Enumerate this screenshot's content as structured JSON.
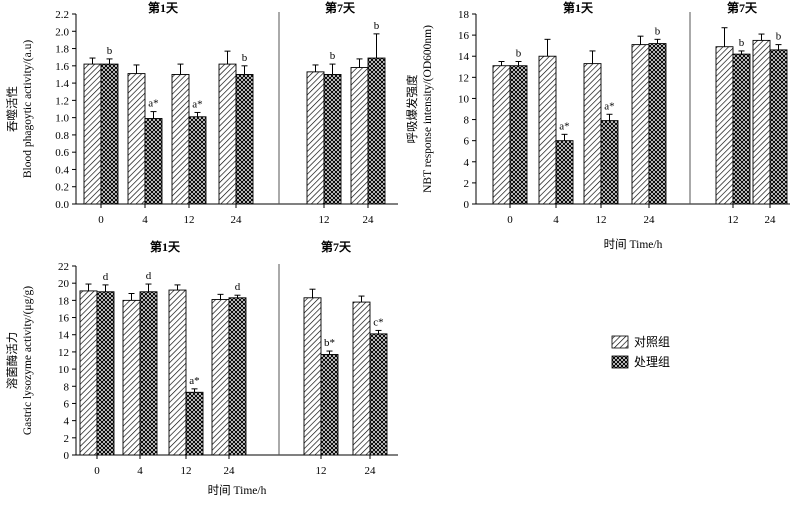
{
  "legend": {
    "control": "对照组",
    "treated": "处理组"
  },
  "chart_data": [
    {
      "type": "bar",
      "ylabel_cn": "吞噬活性",
      "ylabel_en": "Blood phagoytic activity/(a.u)",
      "xlabel": "",
      "ylim": [
        0,
        2.2
      ],
      "ytick_step": 0.2,
      "ytick_decimals": 1,
      "groups": [
        {
          "day_label": "第1天",
          "categories": [
            "0",
            "4",
            "12",
            "24"
          ],
          "series": [
            {
              "name": "对照组",
              "values": [
                1.62,
                1.51,
                1.5,
                1.62
              ],
              "errors": [
                0.07,
                0.1,
                0.12,
                0.15
              ]
            },
            {
              "name": "处理组",
              "values": [
                1.62,
                0.99,
                1.01,
                1.5
              ],
              "errors": [
                0.06,
                0.08,
                0.05,
                0.1
              ]
            }
          ],
          "annotations": [
            {
              "category": "0",
              "series": 1,
              "text": "b"
            },
            {
              "category": "4",
              "series": 1,
              "text": "a*"
            },
            {
              "category": "12",
              "series": 1,
              "text": "a*"
            },
            {
              "category": "24",
              "series": 1,
              "text": "b"
            }
          ]
        },
        {
          "day_label": "第7天",
          "categories": [
            "12",
            "24"
          ],
          "series": [
            {
              "name": "对照组",
              "values": [
                1.53,
                1.58
              ],
              "errors": [
                0.08,
                0.1
              ]
            },
            {
              "name": "处理组",
              "values": [
                1.5,
                1.69
              ],
              "errors": [
                0.12,
                0.28
              ]
            }
          ],
          "annotations": [
            {
              "category": "12",
              "series": 1,
              "text": "b"
            },
            {
              "category": "24",
              "series": 1,
              "text": "b"
            }
          ]
        }
      ]
    },
    {
      "type": "bar",
      "ylabel_cn": "呼吸爆发强度",
      "ylabel_en": "NBT response intensity/(OD600nm)",
      "xlabel": "时间 Time/h",
      "ylim": [
        0,
        18
      ],
      "ytick_step": 2,
      "ytick_decimals": 0,
      "groups": [
        {
          "day_label": "第1天",
          "categories": [
            "0",
            "4",
            "12",
            "24"
          ],
          "series": [
            {
              "name": "对照组",
              "values": [
                13.1,
                14.0,
                13.3,
                15.1
              ],
              "errors": [
                0.4,
                1.6,
                1.2,
                0.8
              ]
            },
            {
              "name": "处理组",
              "values": [
                13.1,
                6.0,
                7.9,
                15.2
              ],
              "errors": [
                0.4,
                0.6,
                0.6,
                0.4
              ]
            }
          ],
          "annotations": [
            {
              "category": "0",
              "series": 1,
              "text": "b"
            },
            {
              "category": "4",
              "series": 1,
              "text": "a*"
            },
            {
              "category": "12",
              "series": 1,
              "text": "a*"
            },
            {
              "category": "24",
              "series": 1,
              "text": "b"
            }
          ]
        },
        {
          "day_label": "第7天",
          "categories": [
            "12",
            "24"
          ],
          "series": [
            {
              "name": "对照组",
              "values": [
                14.9,
                15.5
              ],
              "errors": [
                1.8,
                0.6
              ]
            },
            {
              "name": "处理组",
              "values": [
                14.2,
                14.6
              ],
              "errors": [
                0.3,
                0.5
              ]
            }
          ],
          "annotations": [
            {
              "category": "12",
              "series": 1,
              "text": "b"
            },
            {
              "category": "24",
              "series": 1,
              "text": "b"
            }
          ]
        }
      ]
    },
    {
      "type": "bar",
      "ylabel_cn": "溶菌酶活力",
      "ylabel_en": "Gastric lysozyme activity/(μg/g)",
      "xlabel": "时间 Time/h",
      "ylim": [
        0,
        22
      ],
      "ytick_step": 2,
      "ytick_decimals": 0,
      "groups": [
        {
          "day_label": "第1天",
          "categories": [
            "0",
            "4",
            "12",
            "24"
          ],
          "series": [
            {
              "name": "对照组",
              "values": [
                19.1,
                18.0,
                19.2,
                18.1
              ],
              "errors": [
                0.8,
                0.8,
                0.6,
                0.6
              ]
            },
            {
              "name": "处理组",
              "values": [
                19.0,
                19.0,
                7.3,
                18.3
              ],
              "errors": [
                0.8,
                0.9,
                0.4,
                0.3
              ]
            }
          ],
          "annotations": [
            {
              "category": "0",
              "series": 1,
              "text": "d"
            },
            {
              "category": "4",
              "series": 1,
              "text": "d"
            },
            {
              "category": "12",
              "series": 1,
              "text": "a*"
            },
            {
              "category": "24",
              "series": 1,
              "text": "d"
            }
          ]
        },
        {
          "day_label": "第7天",
          "categories": [
            "12",
            "24"
          ],
          "series": [
            {
              "name": "对照组",
              "values": [
                18.3,
                17.8
              ],
              "errors": [
                1.0,
                0.7
              ]
            },
            {
              "name": "处理组",
              "values": [
                11.7,
                14.1
              ],
              "errors": [
                0.4,
                0.4
              ]
            }
          ],
          "annotations": [
            {
              "category": "12",
              "series": 1,
              "text": "b*"
            },
            {
              "category": "24",
              "series": 1,
              "text": "c*"
            }
          ]
        }
      ]
    }
  ]
}
